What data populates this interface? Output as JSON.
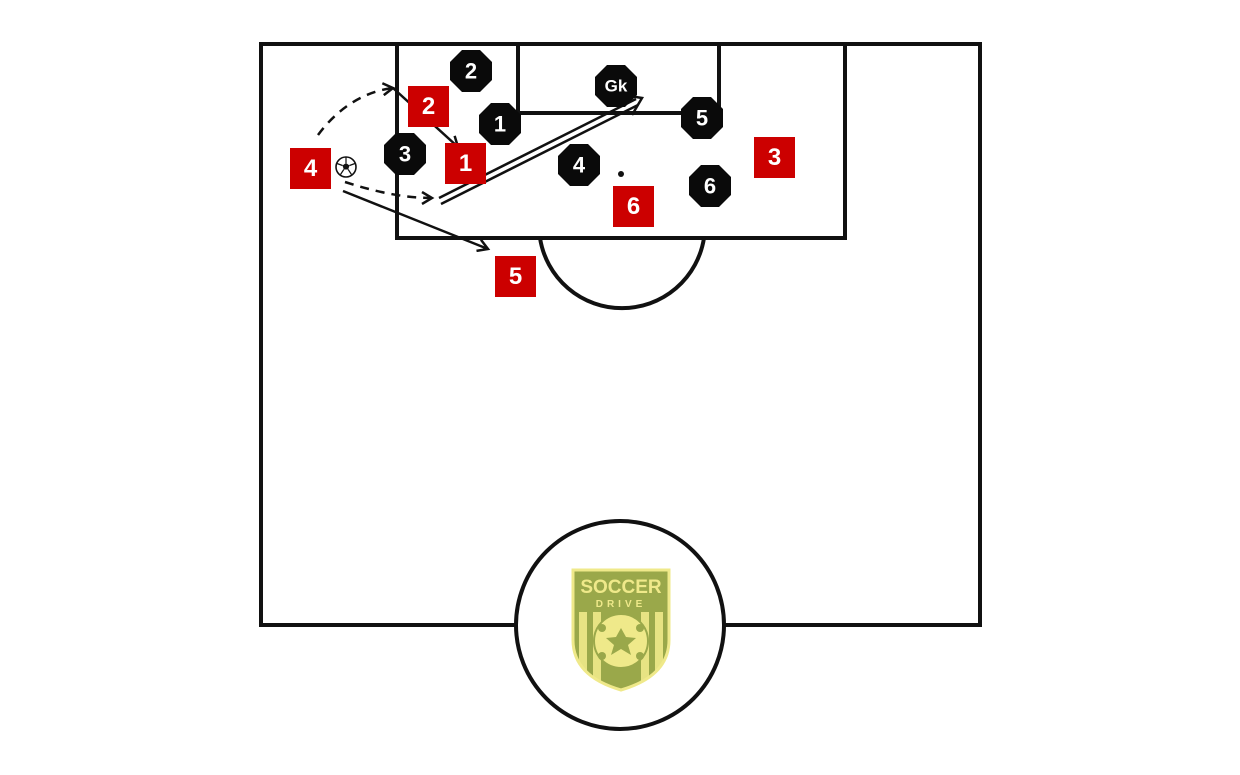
{
  "colors": {
    "attacker": "#cc0000",
    "defender": "#0a0a0a",
    "lines": "#111111",
    "logo_green": "#9aa84a",
    "logo_yellow": "#efe98a"
  },
  "attackers": [
    {
      "label": "1"
    },
    {
      "label": "2"
    },
    {
      "label": "3"
    },
    {
      "label": "4"
    },
    {
      "label": "5"
    },
    {
      "label": "6"
    }
  ],
  "defenders": [
    {
      "label": "1"
    },
    {
      "label": "2"
    },
    {
      "label": "3"
    },
    {
      "label": "4"
    },
    {
      "label": "5"
    },
    {
      "label": "6"
    }
  ],
  "goalkeeper": {
    "label": "Gk"
  },
  "ball": {
    "icon": "soccer-ball-icon"
  },
  "logo": {
    "line1": "SOCCER",
    "line2": "DRIVE"
  }
}
